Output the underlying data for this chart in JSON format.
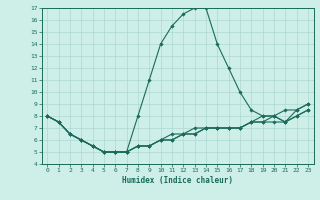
{
  "xlabel": "Humidex (Indice chaleur)",
  "xlim": [
    -0.5,
    23.5
  ],
  "ylim": [
    4,
    17
  ],
  "xticks": [
    0,
    1,
    2,
    3,
    4,
    5,
    6,
    7,
    8,
    9,
    10,
    11,
    12,
    13,
    14,
    15,
    16,
    17,
    18,
    19,
    20,
    21,
    22,
    23
  ],
  "yticks": [
    4,
    5,
    6,
    7,
    8,
    9,
    10,
    11,
    12,
    13,
    14,
    15,
    16,
    17
  ],
  "bg_color": "#ceeee8",
  "line_color": "#1a6b5a",
  "grid_color": "#aed8d2",
  "main_line": [
    8,
    7.5,
    6.5,
    6.0,
    5.5,
    5.0,
    5.0,
    5.0,
    8.0,
    11.0,
    14.0,
    15.5,
    16.5,
    17.0,
    17.0,
    14.0,
    12.0,
    10.0,
    8.5,
    8.0,
    8.0,
    8.5,
    8.5,
    9.0
  ],
  "line2": [
    8,
    7.5,
    6.5,
    6.0,
    5.5,
    5.0,
    5.0,
    5.0,
    5.5,
    5.5,
    6.0,
    6.0,
    6.5,
    6.5,
    7.0,
    7.0,
    7.0,
    7.0,
    7.5,
    7.5,
    7.5,
    7.5,
    8.0,
    8.5
  ],
  "line3": [
    8,
    7.5,
    6.5,
    6.0,
    5.5,
    5.0,
    5.0,
    5.0,
    5.5,
    5.5,
    6.0,
    6.0,
    6.5,
    6.5,
    7.0,
    7.0,
    7.0,
    7.0,
    7.5,
    7.5,
    8.0,
    7.5,
    8.0,
    8.5
  ],
  "line4": [
    8,
    7.5,
    6.5,
    6.0,
    5.5,
    5.0,
    5.0,
    5.0,
    5.5,
    5.5,
    6.0,
    6.5,
    6.5,
    7.0,
    7.0,
    7.0,
    7.0,
    7.0,
    7.5,
    8.0,
    8.0,
    7.5,
    8.5,
    9.0
  ]
}
